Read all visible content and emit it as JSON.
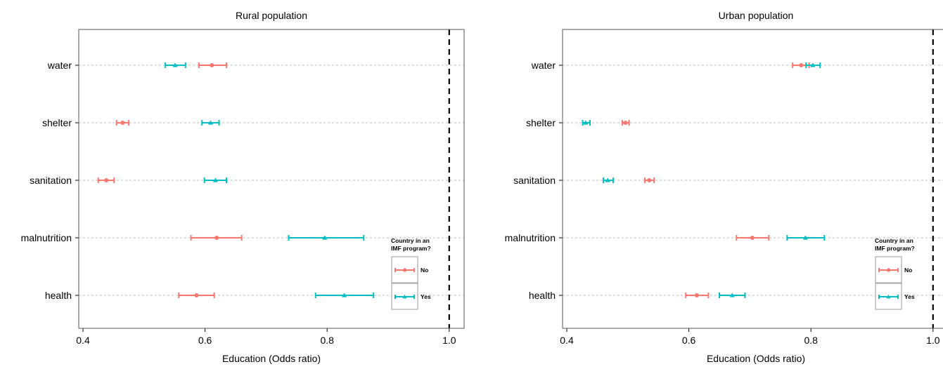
{
  "chart_data": [
    {
      "type": "forest",
      "title": "Rural population",
      "xlabel": "Education (Odds ratio)",
      "xlim": [
        0.4,
        1.03
      ],
      "xticks": [
        "0.4",
        "0.6",
        "0.8",
        "1.0"
      ],
      "reference_line": 1.0,
      "categories": [
        "water",
        "shelter",
        "sanitation",
        "malnutrition",
        "health"
      ],
      "legend": {
        "title_lines": [
          "Country in an",
          "IMF program?"
        ],
        "placement": "bottom-right",
        "entries": [
          "No",
          "Yes"
        ]
      },
      "series": [
        {
          "name": "No",
          "color": "#F8766D",
          "marker": "circle",
          "estimate": [
            0.611,
            0.465,
            0.438,
            0.619,
            0.586
          ],
          "low": [
            0.59,
            0.455,
            0.425,
            0.577,
            0.557
          ],
          "high": [
            0.635,
            0.475,
            0.451,
            0.66,
            0.615
          ]
        },
        {
          "name": "Yes",
          "color": "#00BFC4",
          "marker": "triangle",
          "estimate": [
            0.551,
            0.609,
            0.617,
            0.796,
            0.828
          ],
          "low": [
            0.535,
            0.595,
            0.599,
            0.737,
            0.781
          ],
          "high": [
            0.568,
            0.623,
            0.635,
            0.86,
            0.876
          ]
        }
      ]
    },
    {
      "type": "forest",
      "title": "Urban population",
      "xlabel": "Education (Odds ratio)",
      "xlim": [
        0.4,
        1.03
      ],
      "xticks": [
        "0.4",
        "0.6",
        "0.8",
        "1.0"
      ],
      "reference_line": 1.0,
      "categories": [
        "water",
        "shelter",
        "sanitation",
        "malnutrition",
        "health"
      ],
      "legend": {
        "title_lines": [
          "Country in an",
          "IMF program?"
        ],
        "placement": "bottom-right",
        "entries": [
          "No",
          "Yes"
        ]
      },
      "series": [
        {
          "name": "No",
          "color": "#F8766D",
          "marker": "circle",
          "estimate": [
            0.784,
            0.496,
            0.535,
            0.704,
            0.613
          ],
          "low": [
            0.77,
            0.491,
            0.528,
            0.678,
            0.595
          ],
          "high": [
            0.797,
            0.502,
            0.543,
            0.731,
            0.632
          ]
        },
        {
          "name": "Yes",
          "color": "#00BFC4",
          "marker": "triangle",
          "estimate": [
            0.803,
            0.431,
            0.467,
            0.791,
            0.671
          ],
          "low": [
            0.792,
            0.426,
            0.46,
            0.761,
            0.65
          ],
          "high": [
            0.815,
            0.438,
            0.476,
            0.822,
            0.692
          ]
        }
      ]
    }
  ]
}
